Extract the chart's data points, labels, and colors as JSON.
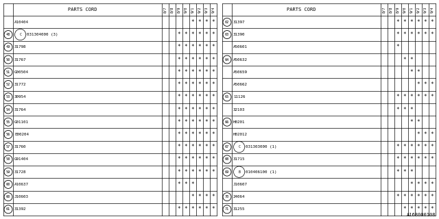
{
  "footer": "A168000108",
  "col_headers": [
    "8/7",
    "8/8",
    "8/9",
    "9/0",
    "9/1",
    "9/2",
    "9/3",
    "9/4"
  ],
  "left_rows": [
    {
      "num": null,
      "part": "A10404",
      "circle": false,
      "letter": "",
      "stars": [
        0,
        0,
        0,
        0,
        1,
        1,
        1,
        1
      ]
    },
    {
      "num": "48",
      "part": "031304000 (3)",
      "circle": true,
      "letter": "C",
      "stars": [
        0,
        0,
        1,
        1,
        1,
        1,
        1,
        1
      ]
    },
    {
      "num": "49",
      "part": "31798",
      "circle": false,
      "letter": "",
      "stars": [
        0,
        0,
        1,
        1,
        1,
        1,
        1,
        1
      ]
    },
    {
      "num": "50",
      "part": "31767",
      "circle": false,
      "letter": "",
      "stars": [
        0,
        0,
        1,
        1,
        1,
        1,
        1,
        1
      ]
    },
    {
      "num": "51",
      "part": "G00504",
      "circle": false,
      "letter": "",
      "stars": [
        0,
        0,
        1,
        1,
        1,
        1,
        1,
        1
      ]
    },
    {
      "num": "52",
      "part": "31772",
      "circle": false,
      "letter": "",
      "stars": [
        0,
        0,
        1,
        1,
        1,
        1,
        1,
        1
      ]
    },
    {
      "num": "53",
      "part": "30954",
      "circle": false,
      "letter": "",
      "stars": [
        0,
        0,
        1,
        1,
        1,
        1,
        1,
        1
      ]
    },
    {
      "num": "54",
      "part": "31764",
      "circle": false,
      "letter": "",
      "stars": [
        0,
        0,
        1,
        1,
        1,
        1,
        1,
        1
      ]
    },
    {
      "num": "55",
      "part": "G01101",
      "circle": false,
      "letter": "",
      "stars": [
        0,
        0,
        1,
        1,
        1,
        1,
        1,
        1
      ]
    },
    {
      "num": "56",
      "part": "E00204",
      "circle": false,
      "letter": "",
      "stars": [
        0,
        0,
        1,
        1,
        1,
        1,
        1,
        1
      ]
    },
    {
      "num": "57",
      "part": "31760",
      "circle": false,
      "letter": "",
      "stars": [
        0,
        0,
        1,
        1,
        1,
        1,
        1,
        1
      ]
    },
    {
      "num": "58",
      "part": "G91404",
      "circle": false,
      "letter": "",
      "stars": [
        0,
        0,
        1,
        1,
        1,
        1,
        1,
        1
      ]
    },
    {
      "num": "59",
      "part": "31728",
      "circle": false,
      "letter": "",
      "stars": [
        0,
        0,
        1,
        1,
        1,
        1,
        1,
        1
      ]
    },
    {
      "num": "60",
      "part": "A10637",
      "circle": false,
      "letter": "",
      "stars": [
        0,
        0,
        1,
        1,
        1,
        0,
        0,
        0
      ]
    },
    {
      "num": "60",
      "part": "J10603",
      "circle": false,
      "letter": "",
      "stars": [
        0,
        0,
        0,
        0,
        1,
        1,
        1,
        1
      ]
    },
    {
      "num": "61",
      "part": "31392",
      "circle": false,
      "letter": "",
      "stars": [
        0,
        0,
        1,
        1,
        1,
        1,
        1,
        1
      ]
    }
  ],
  "right_rows": [
    {
      "num": "62",
      "part": "31397",
      "circle": false,
      "letter": "",
      "stars": [
        0,
        0,
        1,
        1,
        1,
        1,
        1,
        1
      ]
    },
    {
      "num": "63",
      "part": "31390",
      "circle": false,
      "letter": "",
      "stars": [
        0,
        0,
        1,
        1,
        1,
        1,
        1,
        1
      ]
    },
    {
      "num": null,
      "part": "A50601",
      "circle": false,
      "letter": "",
      "stars": [
        0,
        0,
        1,
        0,
        0,
        0,
        0,
        0
      ]
    },
    {
      "num": "64",
      "part": "A50632",
      "circle": false,
      "letter": "",
      "stars": [
        0,
        0,
        0,
        1,
        1,
        0,
        0,
        0
      ]
    },
    {
      "num": null,
      "part": "A50659",
      "circle": false,
      "letter": "",
      "stars": [
        0,
        0,
        0,
        0,
        1,
        1,
        0,
        0
      ]
    },
    {
      "num": null,
      "part": "A50662",
      "circle": false,
      "letter": "",
      "stars": [
        0,
        0,
        0,
        0,
        0,
        1,
        1,
        1
      ]
    },
    {
      "num": "65",
      "part": "11126",
      "circle": false,
      "letter": "",
      "stars": [
        0,
        0,
        1,
        1,
        1,
        1,
        1,
        1
      ]
    },
    {
      "num": null,
      "part": "32103",
      "circle": false,
      "letter": "",
      "stars": [
        0,
        0,
        1,
        1,
        1,
        0,
        0,
        0
      ]
    },
    {
      "num": "66",
      "part": "H0201",
      "circle": false,
      "letter": "",
      "stars": [
        0,
        0,
        0,
        0,
        1,
        1,
        0,
        0
      ]
    },
    {
      "num": null,
      "part": "H02012",
      "circle": false,
      "letter": "",
      "stars": [
        0,
        0,
        0,
        0,
        0,
        1,
        1,
        1
      ]
    },
    {
      "num": "67",
      "part": "031303000 (1)",
      "circle": true,
      "letter": "C",
      "stars": [
        0,
        0,
        1,
        1,
        1,
        1,
        1,
        1
      ]
    },
    {
      "num": "68",
      "part": "31715",
      "circle": false,
      "letter": "",
      "stars": [
        0,
        0,
        1,
        1,
        1,
        1,
        1,
        1
      ]
    },
    {
      "num": "69",
      "part": "010406100 (1)",
      "circle": true,
      "letter": "B",
      "stars": [
        0,
        0,
        1,
        1,
        1,
        0,
        0,
        0
      ]
    },
    {
      "num": null,
      "part": "J10607",
      "circle": false,
      "letter": "",
      "stars": [
        0,
        0,
        0,
        0,
        1,
        1,
        1,
        1
      ]
    },
    {
      "num": "70",
      "part": "24064",
      "circle": false,
      "letter": "",
      "stars": [
        0,
        0,
        1,
        1,
        1,
        1,
        1,
        1
      ]
    },
    {
      "num": "71",
      "part": "31255",
      "circle": false,
      "letter": "",
      "stars": [
        0,
        0,
        0,
        1,
        1,
        1,
        1,
        1
      ]
    }
  ],
  "bg_color": "#f0f0f0",
  "line_color": "#000000",
  "text_color": "#000000"
}
